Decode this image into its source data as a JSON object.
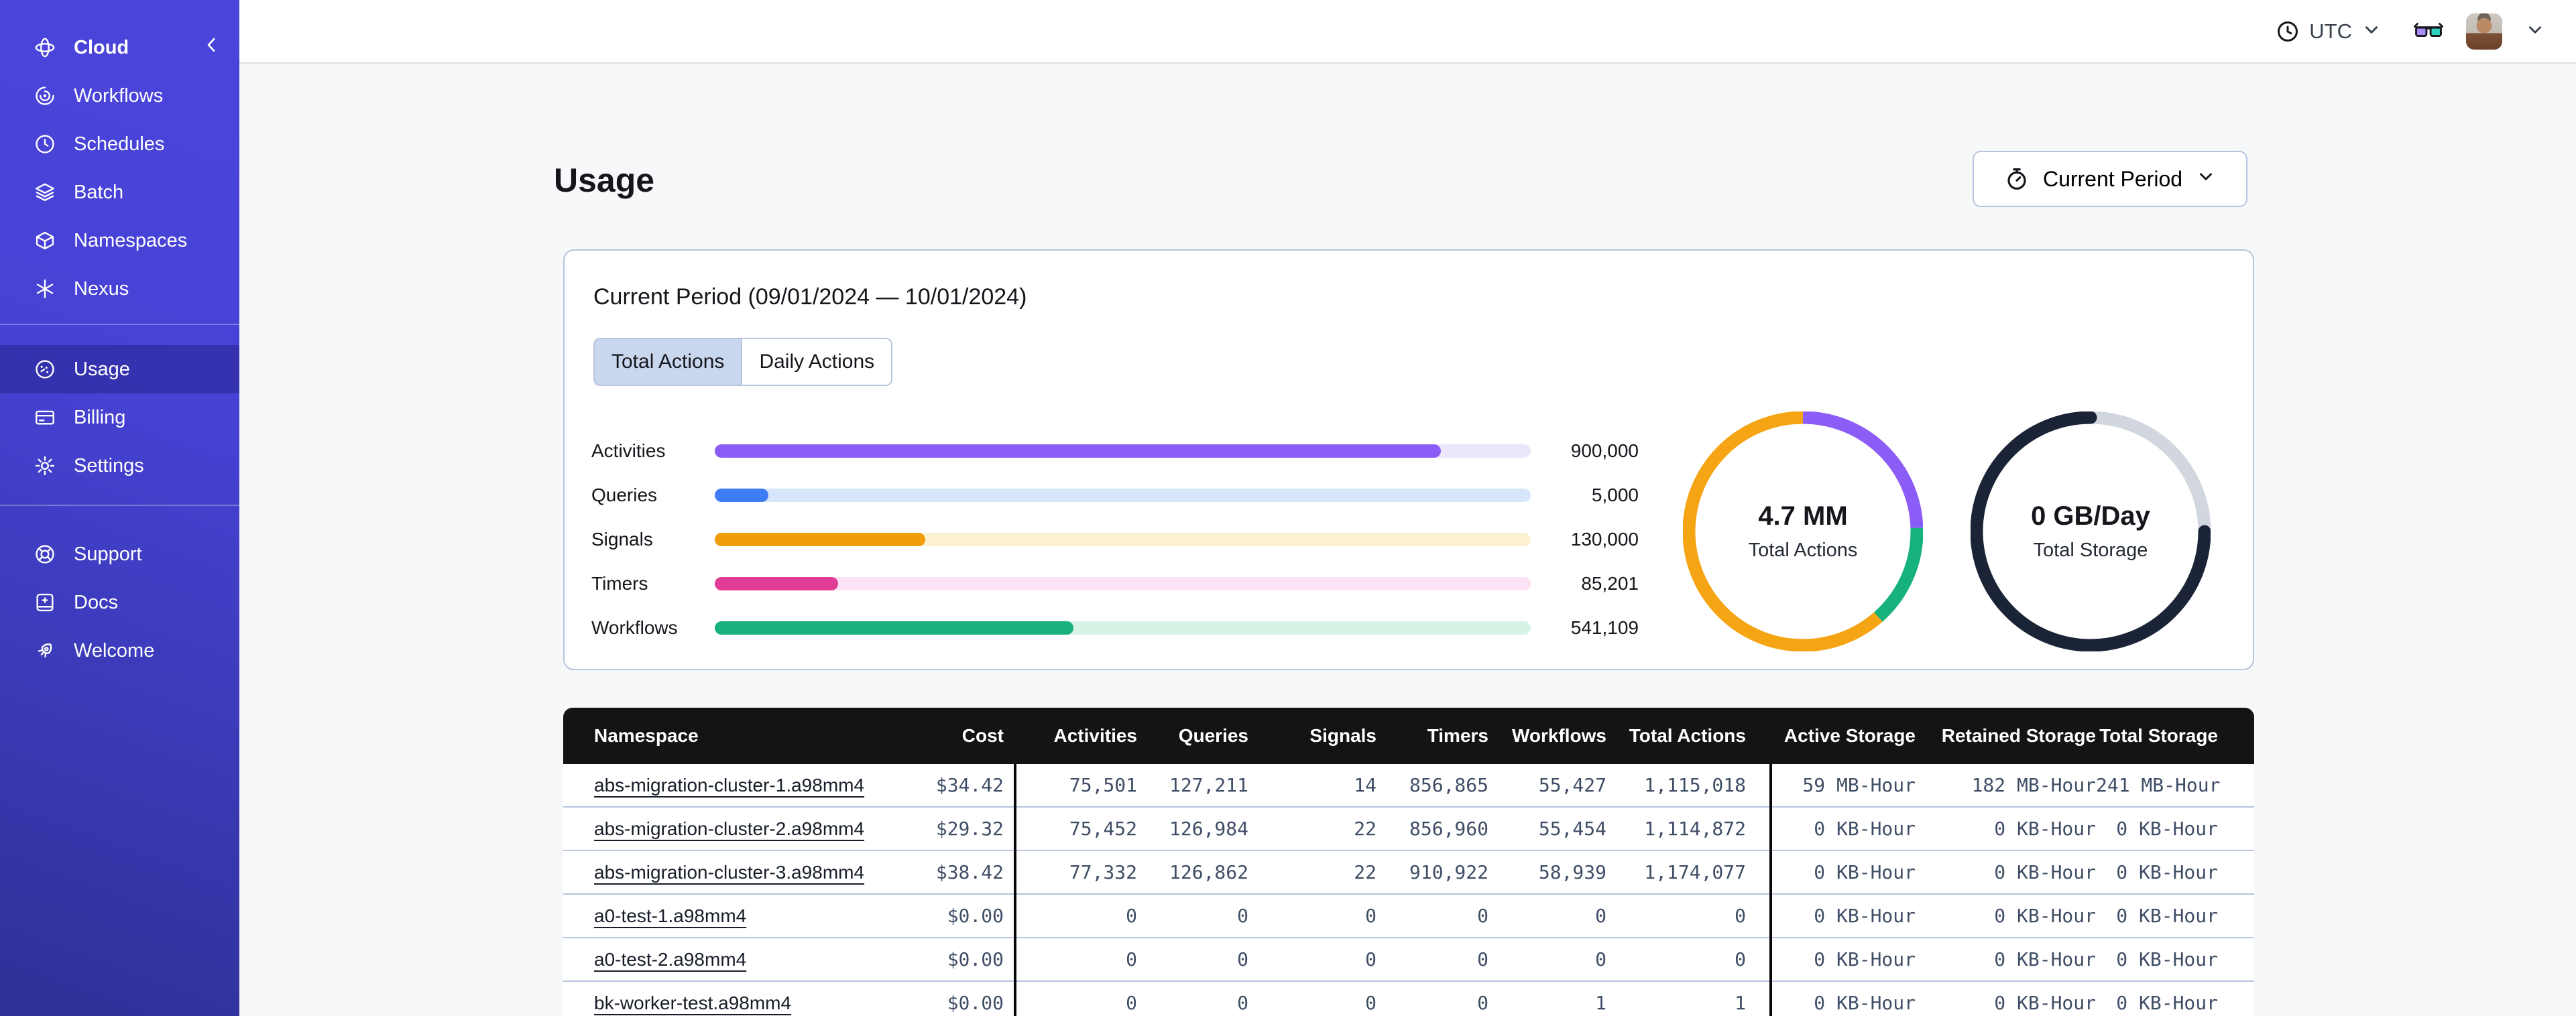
{
  "colors": {
    "sidebar_top": "#4b45dc",
    "sidebar_bottom": "#2e3196",
    "accent_border": "#b7c4de",
    "selected_tab_bg": "#c8d6ee",
    "table_header_bg": "#141414",
    "mono_text": "#3f4e66"
  },
  "sidebar": {
    "brand": {
      "label": "Cloud",
      "icon": "orbit-icon"
    },
    "collapse_icon": "chevron-left-icon",
    "groups": [
      {
        "items": [
          {
            "label": "Workflows",
            "icon": "workflows-icon"
          },
          {
            "label": "Schedules",
            "icon": "schedules-icon"
          },
          {
            "label": "Batch",
            "icon": "batch-icon"
          },
          {
            "label": "Namespaces",
            "icon": "namespaces-icon"
          },
          {
            "label": "Nexus",
            "icon": "nexus-icon"
          }
        ]
      },
      {
        "items": [
          {
            "label": "Usage",
            "icon": "usage-icon",
            "active": true
          },
          {
            "label": "Billing",
            "icon": "billing-icon"
          },
          {
            "label": "Settings",
            "icon": "settings-icon"
          }
        ]
      },
      {
        "items": [
          {
            "label": "Support",
            "icon": "support-icon"
          },
          {
            "label": "Docs",
            "icon": "docs-icon"
          },
          {
            "label": "Welcome",
            "icon": "welcome-icon"
          }
        ]
      }
    ]
  },
  "topbar": {
    "timezone": "UTC",
    "timezone_icon": "clock-icon",
    "glasses_icon": "glasses-icon",
    "avatar": "user-avatar"
  },
  "page": {
    "title": "Usage",
    "period_button": {
      "label": "Current Period",
      "icon": "stopwatch-icon"
    }
  },
  "usage_card": {
    "title": "Current Period (09/01/2024 — 10/01/2024)",
    "tabs": [
      {
        "label": "Total Actions",
        "active": true
      },
      {
        "label": "Daily Actions",
        "active": false
      }
    ]
  },
  "chart_data": [
    {
      "id": "actions-by-type",
      "type": "bar",
      "orientation": "horizontal",
      "categories": [
        "Activities",
        "Queries",
        "Signals",
        "Timers",
        "Workflows"
      ],
      "values": [
        900000,
        5000,
        130000,
        85201,
        541109
      ],
      "value_labels": [
        "900,000",
        "5,000",
        "130,000",
        "85,201",
        "541,109"
      ],
      "fill_percents": [
        89,
        6.6,
        25.8,
        15.1,
        44
      ],
      "colors": [
        "#8b5cf6",
        "#3f7df6",
        "#f09d0a",
        "#e23d96",
        "#17b07e"
      ],
      "track_colors": [
        "#ebe6fb",
        "#d8e6fb",
        "#fcf1cf",
        "#fbe2f4",
        "#d7f3e6"
      ],
      "title": "Total Actions by type",
      "xlabel": "",
      "ylabel": "",
      "grid": false
    },
    {
      "id": "total-actions-donut",
      "type": "pie",
      "center_value": "4.7 MM",
      "center_label": "Total Actions",
      "slices": [
        {
          "name": "activities",
          "color": "#8b5cf6",
          "percent": 24.5
        },
        {
          "name": "workflows",
          "color": "#17b27c",
          "percent": 14
        },
        {
          "name": "signals",
          "color": "#f5a414",
          "percent": 61.5
        }
      ]
    },
    {
      "id": "total-storage-donut",
      "type": "pie",
      "center_value": "0 GB/Day",
      "center_label": "Total Storage",
      "slices": [
        {
          "name": "free",
          "color": "#d2d6de",
          "percent": 25
        },
        {
          "name": "used",
          "color": "#1b2436",
          "percent": 75,
          "linecap": "round"
        }
      ]
    }
  ],
  "table": {
    "columns": [
      "Namespace",
      "Cost",
      "Activities",
      "Queries",
      "Signals",
      "Timers",
      "Workflows",
      "Total Actions",
      "Active Storage",
      "Retained Storage",
      "Total Storage"
    ],
    "rows": [
      [
        "abs-migration-cluster-1.a98mm4",
        "$34.42",
        "75,501",
        "127,211",
        "14",
        "856,865",
        "55,427",
        "1,115,018",
        "59 MB-Hour",
        "182 MB-Hour",
        "241 MB-Hour"
      ],
      [
        "abs-migration-cluster-2.a98mm4",
        "$29.32",
        "75,452",
        "126,984",
        "22",
        "856,960",
        "55,454",
        "1,114,872",
        "0 KB-Hour",
        "0 KB-Hour",
        "0 KB-Hour"
      ],
      [
        "abs-migration-cluster-3.a98mm4",
        "$38.42",
        "77,332",
        "126,862",
        "22",
        "910,922",
        "58,939",
        "1,174,077",
        "0 KB-Hour",
        "0 KB-Hour",
        "0 KB-Hour"
      ],
      [
        "a0-test-1.a98mm4",
        "$0.00",
        "0",
        "0",
        "0",
        "0",
        "0",
        "0",
        "0 KB-Hour",
        "0 KB-Hour",
        "0 KB-Hour"
      ],
      [
        "a0-test-2.a98mm4",
        "$0.00",
        "0",
        "0",
        "0",
        "0",
        "0",
        "0",
        "0 KB-Hour",
        "0 KB-Hour",
        "0 KB-Hour"
      ],
      [
        "bk-worker-test.a98mm4",
        "$0.00",
        "0",
        "0",
        "0",
        "0",
        "1",
        "1",
        "0 KB-Hour",
        "0 KB-Hour",
        "0 KB-Hour"
      ]
    ]
  }
}
